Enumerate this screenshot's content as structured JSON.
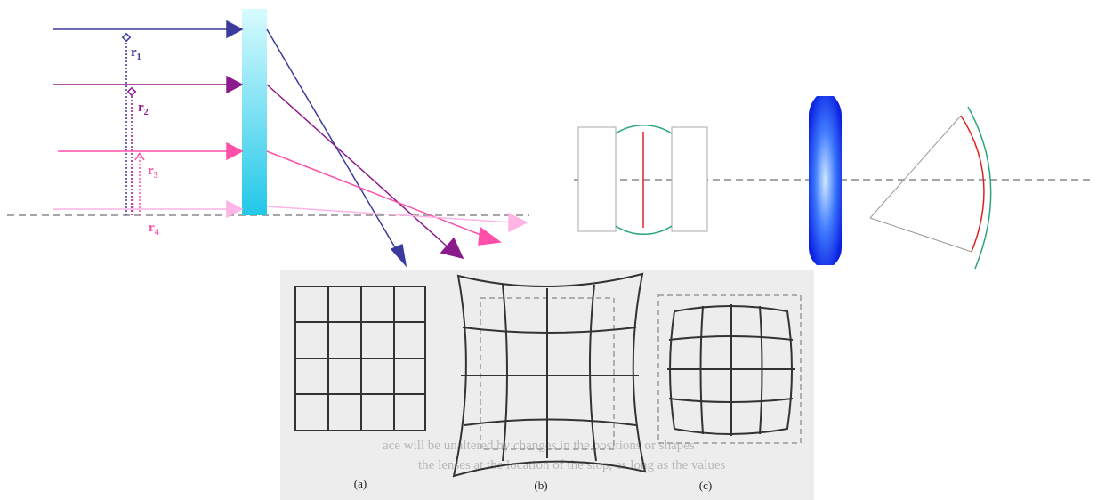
{
  "ray_labels": [
    {
      "base": "r",
      "sub": "1"
    },
    {
      "base": "r",
      "sub": "2"
    },
    {
      "base": "r",
      "sub": "3"
    },
    {
      "base": "r",
      "sub": "4"
    }
  ],
  "distortion_panels": [
    "(a)",
    "(b)",
    "(c)"
  ],
  "scan_text": [
    "ace will be unaltered by changes in the positions or shapes",
    "the lenses at the location of the stop, as long as the values"
  ]
}
